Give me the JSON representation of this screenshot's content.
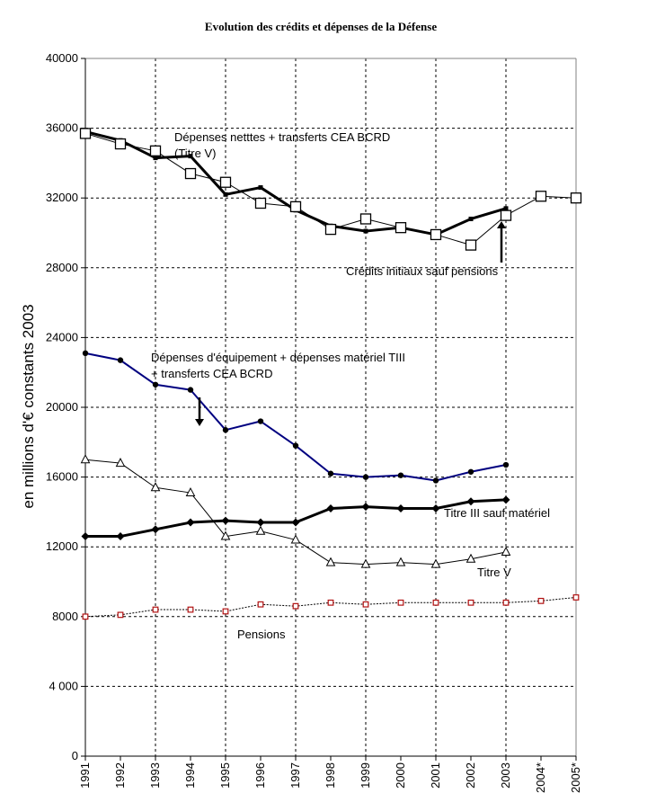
{
  "chart_data": {
    "type": "line",
    "title": "Evolution des crédits et dépenses de la Défense",
    "xlabel": "",
    "ylabel": "en millions d'€ constants 2003",
    "ylim": [
      0,
      40000
    ],
    "yticks": [
      "0",
      "4 000",
      "8000",
      "12000",
      "16000",
      "20000",
      "24000",
      "28000",
      "32000",
      "36000",
      "40000"
    ],
    "grid": true,
    "categories": [
      "1991",
      "1992",
      "1993",
      "1994",
      "1995",
      "1996",
      "1997",
      "1998",
      "1999",
      "2000",
      "2001",
      "2002",
      "2003",
      "2004*",
      "2005*"
    ],
    "series": [
      {
        "name": "Dépenses nettes + transferts CEA BCRD (Titre V)",
        "marker": "smallsquare",
        "color": "#000000",
        "width": 3,
        "values": [
          35800,
          35300,
          34300,
          34400,
          32200,
          32600,
          31300,
          30400,
          30100,
          30300,
          29900,
          30800,
          31400,
          null,
          null
        ]
      },
      {
        "name": "Crédits initiaux sauf pensions",
        "marker": "square",
        "color": "#000000",
        "width": 1,
        "values": [
          35700,
          35100,
          34700,
          33400,
          32900,
          31700,
          31500,
          30200,
          30800,
          30300,
          29900,
          29300,
          31000,
          32100,
          32000
        ]
      },
      {
        "name": "Dépenses d'équipement + dépenses matériel TIII + transferts CEA BCRD",
        "marker": "circle",
        "color": "#000080",
        "width": 2,
        "values": [
          23100,
          22700,
          21300,
          21000,
          18700,
          19200,
          17800,
          16200,
          16000,
          16100,
          15800,
          16300,
          16700,
          null,
          null
        ]
      },
      {
        "name": "Titre III sauf matériel",
        "marker": "diamond",
        "color": "#000000",
        "width": 3,
        "values": [
          12600,
          12600,
          13000,
          13400,
          13500,
          13400,
          13400,
          14200,
          14300,
          14200,
          14200,
          14600,
          14700,
          null,
          null
        ]
      },
      {
        "name": "Titre V",
        "marker": "triangle",
        "color": "#000000",
        "width": 1,
        "values": [
          17000,
          16800,
          15400,
          15100,
          12600,
          12900,
          12400,
          11100,
          11000,
          11100,
          11000,
          11300,
          11700,
          null,
          null
        ]
      },
      {
        "name": "Pensions",
        "marker": "redsquare",
        "color": "#000000",
        "width": 1,
        "values": [
          8000,
          8100,
          8400,
          8400,
          8300,
          8700,
          8600,
          8800,
          8700,
          8800,
          8800,
          8800,
          8800,
          8900,
          9100
        ]
      }
    ],
    "annotations": [
      {
        "lines": [
          "Dépenses netttes + transferts CEA BCRD",
          "(Titre V)"
        ]
      },
      {
        "lines": [
          "Crédits initiaux sauf pensions"
        ]
      },
      {
        "lines": [
          "Dépenses d'équipement + dépenses matériel TIII",
          "+ transferts CEA BCRD"
        ]
      },
      {
        "lines": [
          "Titre III sauf matériel"
        ]
      },
      {
        "lines": [
          "Titre V"
        ]
      },
      {
        "lines": [
          "Pensions"
        ]
      }
    ]
  }
}
